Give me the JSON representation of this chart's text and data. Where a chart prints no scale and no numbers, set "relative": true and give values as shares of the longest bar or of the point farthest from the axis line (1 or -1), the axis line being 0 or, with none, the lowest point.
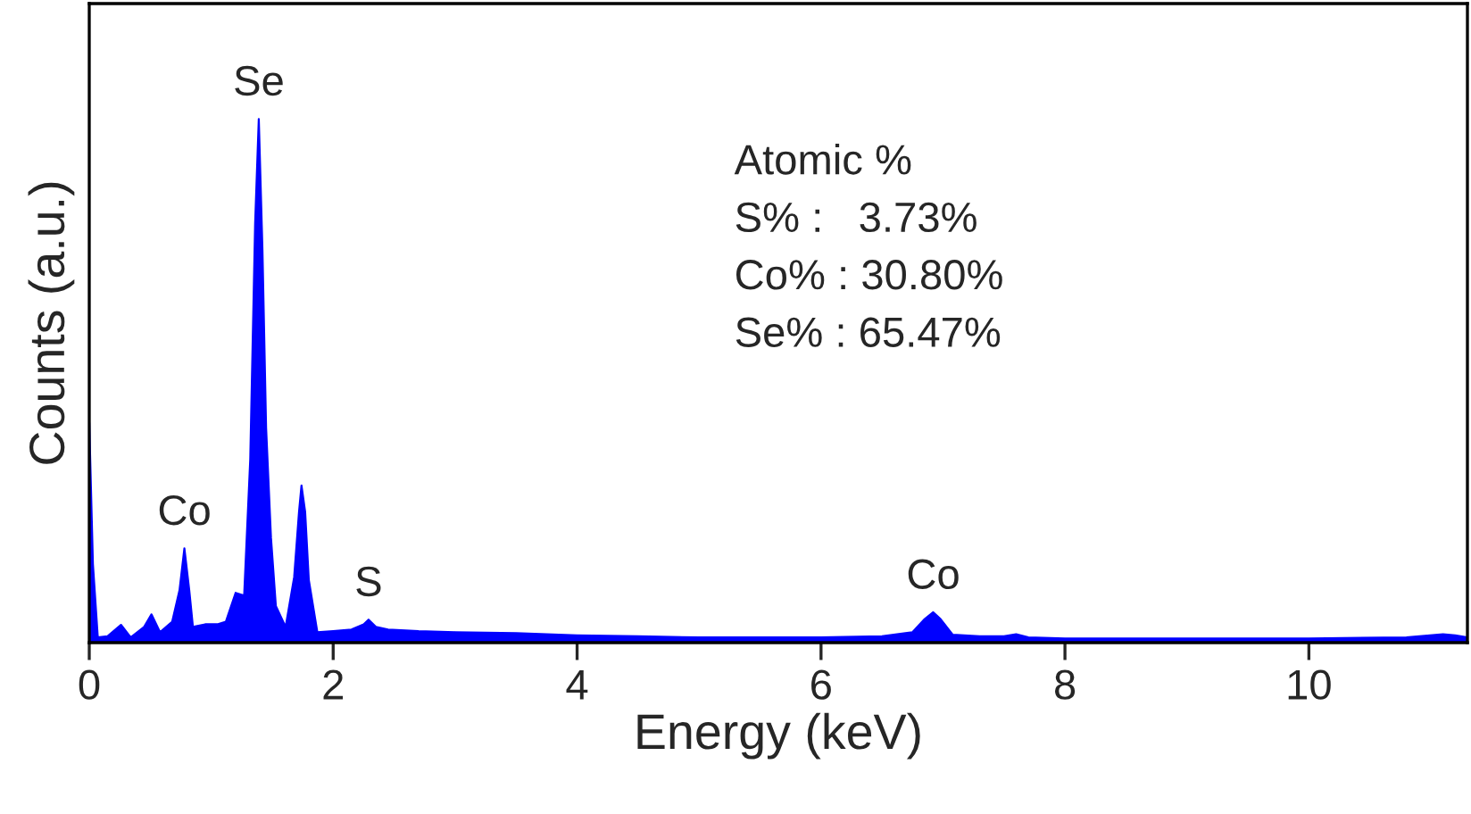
{
  "chart_data": {
    "type": "area",
    "xlabel": "Energy (keV)",
    "ylabel": "Counts (a.u.)",
    "relative": true,
    "xlim": [
      0,
      11.3
    ],
    "xticks": [
      0,
      2,
      4,
      6,
      8,
      10
    ],
    "tick_labels": "x",
    "grid": false,
    "legend": false,
    "x": [
      0,
      0.03,
      0.07,
      0.15,
      0.26,
      0.34,
      0.45,
      0.51,
      0.58,
      0.68,
      0.74,
      0.78,
      0.82,
      0.85,
      0.95,
      1.05,
      1.12,
      1.2,
      1.27,
      1.32,
      1.36,
      1.39,
      1.42,
      1.45,
      1.49,
      1.53,
      1.61,
      1.68,
      1.72,
      1.74,
      1.77,
      1.8,
      1.87,
      2.0,
      2.15,
      2.25,
      2.29,
      2.35,
      2.45,
      2.7,
      3.0,
      3.5,
      4.0,
      4.5,
      5.0,
      5.5,
      6.0,
      6.5,
      6.75,
      6.85,
      6.92,
      6.98,
      7.08,
      7.3,
      7.5,
      7.6,
      7.7,
      8.0,
      9.0,
      10.0,
      10.8,
      11.1,
      11.2,
      11.3
    ],
    "series": [
      {
        "color": "#0000ff",
        "values": [
          0.42,
          0.15,
          0.01,
          0.012,
          0.034,
          0.01,
          0.03,
          0.054,
          0.02,
          0.04,
          0.1,
          0.18,
          0.1,
          0.03,
          0.035,
          0.035,
          0.04,
          0.095,
          0.09,
          0.35,
          0.8,
          1.0,
          0.75,
          0.41,
          0.2,
          0.07,
          0.03,
          0.125,
          0.25,
          0.3,
          0.25,
          0.12,
          0.02,
          0.022,
          0.025,
          0.035,
          0.044,
          0.03,
          0.025,
          0.022,
          0.02,
          0.018,
          0.014,
          0.012,
          0.01,
          0.01,
          0.01,
          0.012,
          0.02,
          0.045,
          0.058,
          0.045,
          0.015,
          0.012,
          0.012,
          0.016,
          0.01,
          0.008,
          0.008,
          0.008,
          0.01,
          0.016,
          0.014,
          0.01
        ]
      }
    ],
    "annotations": [
      {
        "text": "Se",
        "x": 1.39,
        "y": 1.0
      },
      {
        "text": "Co",
        "x": 0.78,
        "y": 0.18
      },
      {
        "text": "S",
        "x": 2.29,
        "y": 0.044
      },
      {
        "text": "Co",
        "x": 6.92,
        "y": 0.058
      },
      "Atomic %",
      "S% :   3.73%",
      "Co% : 30.80%",
      "Se% : 65.47%"
    ]
  }
}
